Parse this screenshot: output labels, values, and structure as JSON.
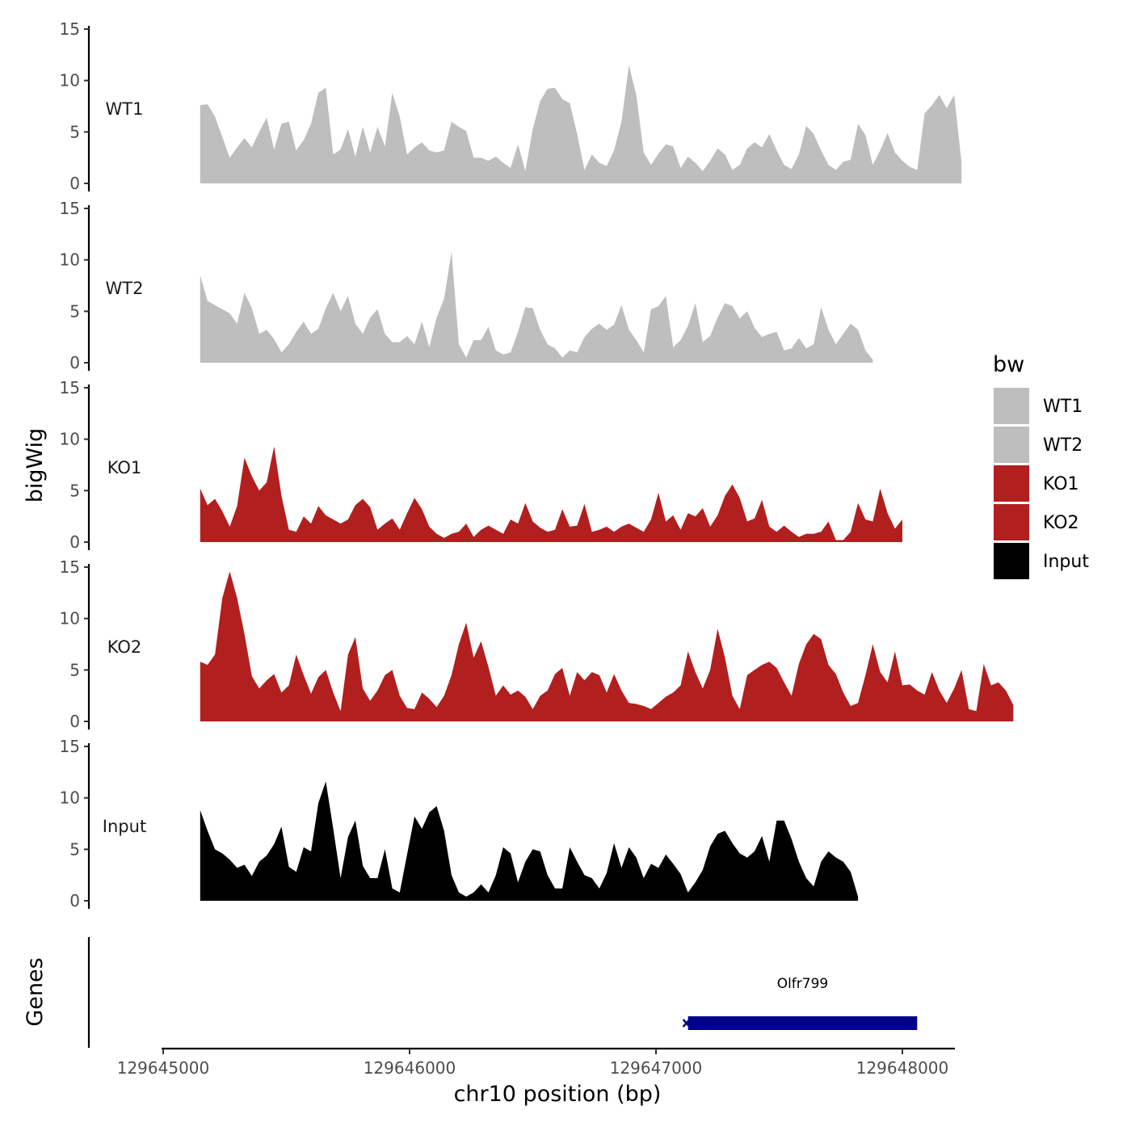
{
  "chart_data": {
    "type": "area",
    "ylabel": "bigWig",
    "xlabel": "chr10 position (bp)",
    "genes_label": "Genes",
    "xlim": [
      129644990,
      129648210
    ],
    "xticks": [
      129645000,
      129646000,
      129647000,
      129648000
    ],
    "xtick_labels": [
      "129645000",
      "129646000",
      "129647000",
      "129648000"
    ],
    "ylim": [
      0,
      15
    ],
    "yticks": [
      0,
      5,
      10,
      15
    ],
    "ytick_labels": [
      "0",
      "5",
      "10",
      "15"
    ],
    "legend": {
      "title": "bw",
      "entries": [
        {
          "label": "WT1",
          "color": "#bebebe"
        },
        {
          "label": "WT2",
          "color": "#bebebe"
        },
        {
          "label": "KO1",
          "color": "#b21f1f"
        },
        {
          "label": "KO2",
          "color": "#b21f1f"
        },
        {
          "label": "Input",
          "color": "#000000"
        }
      ]
    },
    "series": [
      {
        "name": "WT1",
        "color": "#bebebe",
        "x_start": 129645150,
        "x_step": 30,
        "values": [
          7.6,
          7.7,
          6.5,
          4.5,
          2.5,
          3.5,
          4.4,
          3.5,
          5.0,
          6.4,
          3.3,
          5.8,
          6.0,
          3.2,
          4.2,
          5.8,
          8.8,
          9.3,
          2.8,
          3.3,
          5.3,
          2.6,
          5.5,
          3.0,
          5.5,
          3.6,
          8.8,
          6.5,
          2.8,
          3.5,
          4.0,
          3.2,
          3.0,
          3.2,
          6.0,
          5.5,
          5.1,
          2.5,
          2.5,
          2.2,
          2.6,
          2.0,
          1.5,
          3.8,
          1.2,
          5.3,
          8.0,
          9.2,
          9.3,
          8.2,
          7.8,
          4.8,
          1.3,
          2.8,
          2.0,
          1.7,
          3.2,
          6.0,
          11.5,
          8.6,
          3.0,
          1.8,
          2.9,
          3.8,
          3.6,
          1.5,
          2.6,
          2.0,
          1.2,
          2.2,
          3.4,
          2.8,
          1.3,
          1.8,
          3.4,
          4.0,
          3.5,
          4.8,
          3.2,
          1.8,
          1.4,
          2.8,
          5.6,
          4.8,
          3.2,
          1.8,
          1.3,
          2.1,
          2.3,
          5.8,
          4.7,
          1.8,
          3.2,
          4.9,
          3.0,
          2.2,
          1.6,
          1.3,
          6.8,
          7.6,
          8.6,
          7.3,
          8.6,
          2.0
        ]
      },
      {
        "name": "WT2",
        "color": "#bebebe",
        "x_start": 129645150,
        "x_step": 30,
        "values": [
          8.5,
          6.0,
          5.6,
          5.2,
          4.8,
          3.8,
          6.8,
          5.3,
          2.8,
          3.2,
          2.3,
          1.0,
          1.8,
          3.0,
          4.0,
          2.8,
          3.3,
          5.3,
          6.8,
          5.0,
          6.5,
          3.8,
          2.8,
          4.4,
          5.2,
          2.8,
          2.0,
          2.0,
          2.6,
          1.8,
          4.0,
          1.5,
          4.4,
          6.2,
          10.8,
          1.8,
          0.5,
          2.2,
          2.2,
          3.5,
          1.2,
          0.8,
          1.0,
          3.0,
          5.4,
          5.3,
          3.2,
          1.8,
          1.4,
          0.5,
          1.2,
          1.0,
          2.5,
          3.3,
          3.8,
          3.2,
          3.7,
          5.6,
          3.2,
          2.2,
          1.0,
          5.2,
          5.5,
          6.5,
          1.5,
          2.2,
          3.6,
          5.8,
          2.0,
          2.6,
          4.4,
          5.8,
          5.5,
          4.3,
          5.0,
          3.4,
          2.5,
          2.8,
          3.0,
          1.2,
          1.4,
          2.4,
          1.4,
          1.8,
          5.4,
          3.2,
          1.8,
          2.8,
          3.8,
          3.2,
          1.2,
          0.3
        ]
      },
      {
        "name": "KO1",
        "color": "#b21f1f",
        "x_start": 129645150,
        "x_step": 30,
        "values": [
          5.2,
          3.6,
          4.2,
          3.0,
          1.5,
          3.5,
          8.2,
          6.4,
          5.0,
          5.8,
          9.3,
          4.5,
          1.2,
          1.0,
          2.5,
          1.8,
          3.5,
          2.6,
          2.2,
          1.8,
          2.2,
          3.6,
          4.2,
          3.4,
          1.2,
          1.8,
          2.3,
          1.2,
          2.8,
          4.3,
          3.2,
          1.5,
          0.8,
          0.4,
          0.8,
          1.0,
          1.8,
          0.5,
          1.2,
          1.6,
          1.2,
          0.8,
          2.2,
          1.8,
          3.8,
          2.0,
          1.4,
          1.0,
          1.2,
          3.2,
          1.5,
          1.6,
          3.7,
          1.0,
          1.2,
          1.5,
          1.0,
          1.5,
          1.8,
          1.4,
          1.0,
          2.2,
          4.8,
          2.0,
          2.6,
          1.2,
          2.8,
          2.5,
          3.3,
          1.5,
          2.6,
          4.5,
          5.6,
          4.3,
          2.0,
          2.3,
          4.1,
          1.5,
          1.0,
          1.6,
          1.0,
          0.5,
          0.8,
          0.8,
          1.0,
          2.0,
          0.2,
          0.2,
          1.0,
          3.8,
          2.2,
          2.0,
          5.2,
          2.8,
          1.3,
          2.2
        ]
      },
      {
        "name": "KO2",
        "color": "#b21f1f",
        "x_start": 129645150,
        "x_step": 30,
        "values": [
          5.8,
          5.5,
          6.5,
          12.0,
          14.6,
          12.0,
          8.5,
          4.4,
          3.2,
          4.0,
          4.6,
          2.8,
          3.5,
          6.5,
          4.5,
          2.7,
          4.3,
          5.0,
          2.8,
          1.0,
          6.5,
          8.2,
          3.2,
          2.0,
          3.0,
          4.5,
          5.0,
          2.5,
          1.3,
          1.2,
          2.8,
          2.2,
          1.4,
          2.5,
          4.5,
          7.5,
          9.6,
          6.2,
          7.8,
          5.3,
          2.5,
          3.5,
          2.6,
          3.0,
          2.4,
          1.2,
          2.5,
          3.0,
          4.6,
          5.2,
          2.5,
          4.8,
          4.0,
          4.8,
          4.5,
          2.8,
          4.6,
          3.0,
          1.8,
          1.7,
          1.5,
          1.2,
          1.8,
          2.4,
          2.8,
          3.5,
          6.8,
          4.8,
          3.2,
          5.0,
          9.0,
          6.2,
          2.5,
          1.2,
          4.5,
          5.0,
          5.5,
          5.8,
          5.2,
          3.8,
          2.5,
          5.6,
          7.5,
          8.5,
          8.0,
          5.5,
          4.6,
          2.8,
          1.5,
          1.8,
          4.5,
          7.5,
          4.8,
          3.8,
          6.8,
          3.5,
          3.6,
          3.0,
          2.6,
          4.8,
          3.0,
          1.8,
          3.2,
          5.0,
          1.2,
          1.0,
          5.6,
          3.5,
          3.8,
          3.0,
          1.6
        ]
      },
      {
        "name": "Input",
        "color": "#000000",
        "x_start": 129645150,
        "x_step": 30,
        "values": [
          8.8,
          6.8,
          5.0,
          4.6,
          4.0,
          3.2,
          3.5,
          2.4,
          3.8,
          4.4,
          5.5,
          7.2,
          3.3,
          2.8,
          5.2,
          4.8,
          9.5,
          11.6,
          7.0,
          2.2,
          6.2,
          7.8,
          3.4,
          2.2,
          2.2,
          5.0,
          1.2,
          0.8,
          4.5,
          8.2,
          7.0,
          8.6,
          9.2,
          6.8,
          2.5,
          0.8,
          0.4,
          0.8,
          1.6,
          0.8,
          2.5,
          5.2,
          4.6,
          1.8,
          3.8,
          5.0,
          4.8,
          2.5,
          1.2,
          1.2,
          5.2,
          3.8,
          2.5,
          2.2,
          1.2,
          2.7,
          5.6,
          3.2,
          5.2,
          4.2,
          2.2,
          3.6,
          3.2,
          4.5,
          3.6,
          2.6,
          0.8,
          1.8,
          3.0,
          5.3,
          6.5,
          6.8,
          5.6,
          4.6,
          4.2,
          4.8,
          6.3,
          3.8,
          7.8,
          7.8,
          6.0,
          3.8,
          2.2,
          1.4,
          3.8,
          4.8,
          4.2,
          3.8,
          2.8,
          0.4
        ]
      }
    ],
    "genes": [
      {
        "name": "Olfr799",
        "start": 129647130,
        "end": 129648060,
        "color": "#00008b"
      }
    ]
  }
}
